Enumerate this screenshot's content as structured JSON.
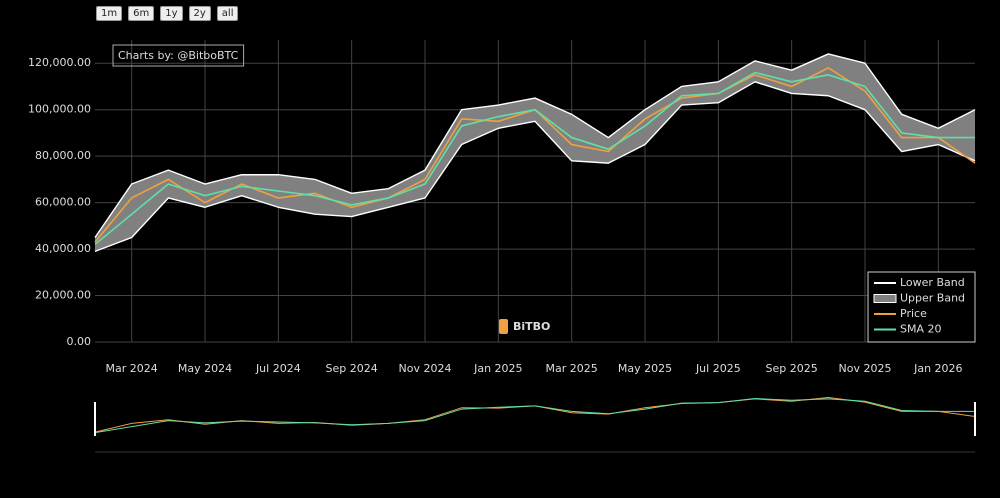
{
  "chart_data": {
    "type": "line",
    "annotation": "Charts by: @BitboBTC",
    "watermark": "BiTBO",
    "range_buttons": [
      "1m",
      "6m",
      "1y",
      "2y",
      "all"
    ],
    "x": [
      "2024-02",
      "2024-03",
      "2024-04",
      "2024-05",
      "2024-06",
      "2024-07",
      "2024-08",
      "2024-09",
      "2024-10",
      "2024-11",
      "2024-12",
      "2025-01",
      "2025-02",
      "2025-03",
      "2025-04",
      "2025-05",
      "2025-06",
      "2025-07",
      "2025-08",
      "2025-09",
      "2025-10",
      "2025-11",
      "2025-12",
      "2026-01",
      "2026-02"
    ],
    "xlim": [
      "2024-02",
      "2026-02"
    ],
    "xticks": [
      {
        "value": "2024-03",
        "label": "Mar 2024"
      },
      {
        "value": "2024-05",
        "label": "May 2024"
      },
      {
        "value": "2024-07",
        "label": "Jul 2024"
      },
      {
        "value": "2024-09",
        "label": "Sep 2024"
      },
      {
        "value": "2024-11",
        "label": "Nov 2024"
      },
      {
        "value": "2025-01",
        "label": "Jan 2025"
      },
      {
        "value": "2025-03",
        "label": "Mar 2025"
      },
      {
        "value": "2025-05",
        "label": "May 2025"
      },
      {
        "value": "2025-07",
        "label": "Jul 2025"
      },
      {
        "value": "2025-09",
        "label": "Sep 2025"
      },
      {
        "value": "2025-11",
        "label": "Nov 2025"
      },
      {
        "value": "2026-01",
        "label": "Jan 2026"
      }
    ],
    "ylim": [
      0,
      130000
    ],
    "yticks": [
      {
        "value": 0,
        "label": "0.00"
      },
      {
        "value": 20000,
        "label": "20,000.00"
      },
      {
        "value": 40000,
        "label": "40,000.00"
      },
      {
        "value": 60000,
        "label": "60,000.00"
      },
      {
        "value": 80000,
        "label": "80,000.00"
      },
      {
        "value": 100000,
        "label": "100,000.00"
      },
      {
        "value": 120000,
        "label": "120,000.00"
      }
    ],
    "grid": true,
    "legend": "lower right",
    "band_fill": "#808080",
    "series": [
      {
        "name": "Lower Band",
        "color": "#ffffff",
        "values": [
          39000,
          45000,
          62000,
          58000,
          63000,
          58000,
          55000,
          54000,
          58000,
          62000,
          85000,
          92000,
          95000,
          78000,
          77000,
          85000,
          102000,
          103000,
          112000,
          107000,
          106000,
          100000,
          82000,
          85000,
          78000
        ]
      },
      {
        "name": "Upper Band",
        "color": "#ffffff",
        "values": [
          45000,
          68000,
          74000,
          68000,
          72000,
          72000,
          70000,
          64000,
          66000,
          74000,
          100000,
          102000,
          105000,
          98000,
          88000,
          100000,
          110000,
          112000,
          121000,
          117000,
          124000,
          120000,
          98000,
          92000,
          100000
        ]
      },
      {
        "name": "Price",
        "color": "#f0a040",
        "values": [
          43000,
          62000,
          70000,
          60000,
          68000,
          62000,
          64000,
          58000,
          62000,
          70000,
          96000,
          95000,
          100000,
          85000,
          82000,
          96000,
          105000,
          107000,
          115000,
          110000,
          118000,
          108000,
          88000,
          88000,
          77000
        ]
      },
      {
        "name": "SMA 20",
        "color": "#5fe0a8",
        "values": [
          42000,
          55000,
          68000,
          63000,
          67000,
          65000,
          63000,
          59000,
          62000,
          68000,
          93000,
          97000,
          100000,
          88000,
          83000,
          93000,
          106000,
          107000,
          116000,
          112000,
          115000,
          110000,
          90000,
          88000,
          88000
        ]
      }
    ]
  }
}
